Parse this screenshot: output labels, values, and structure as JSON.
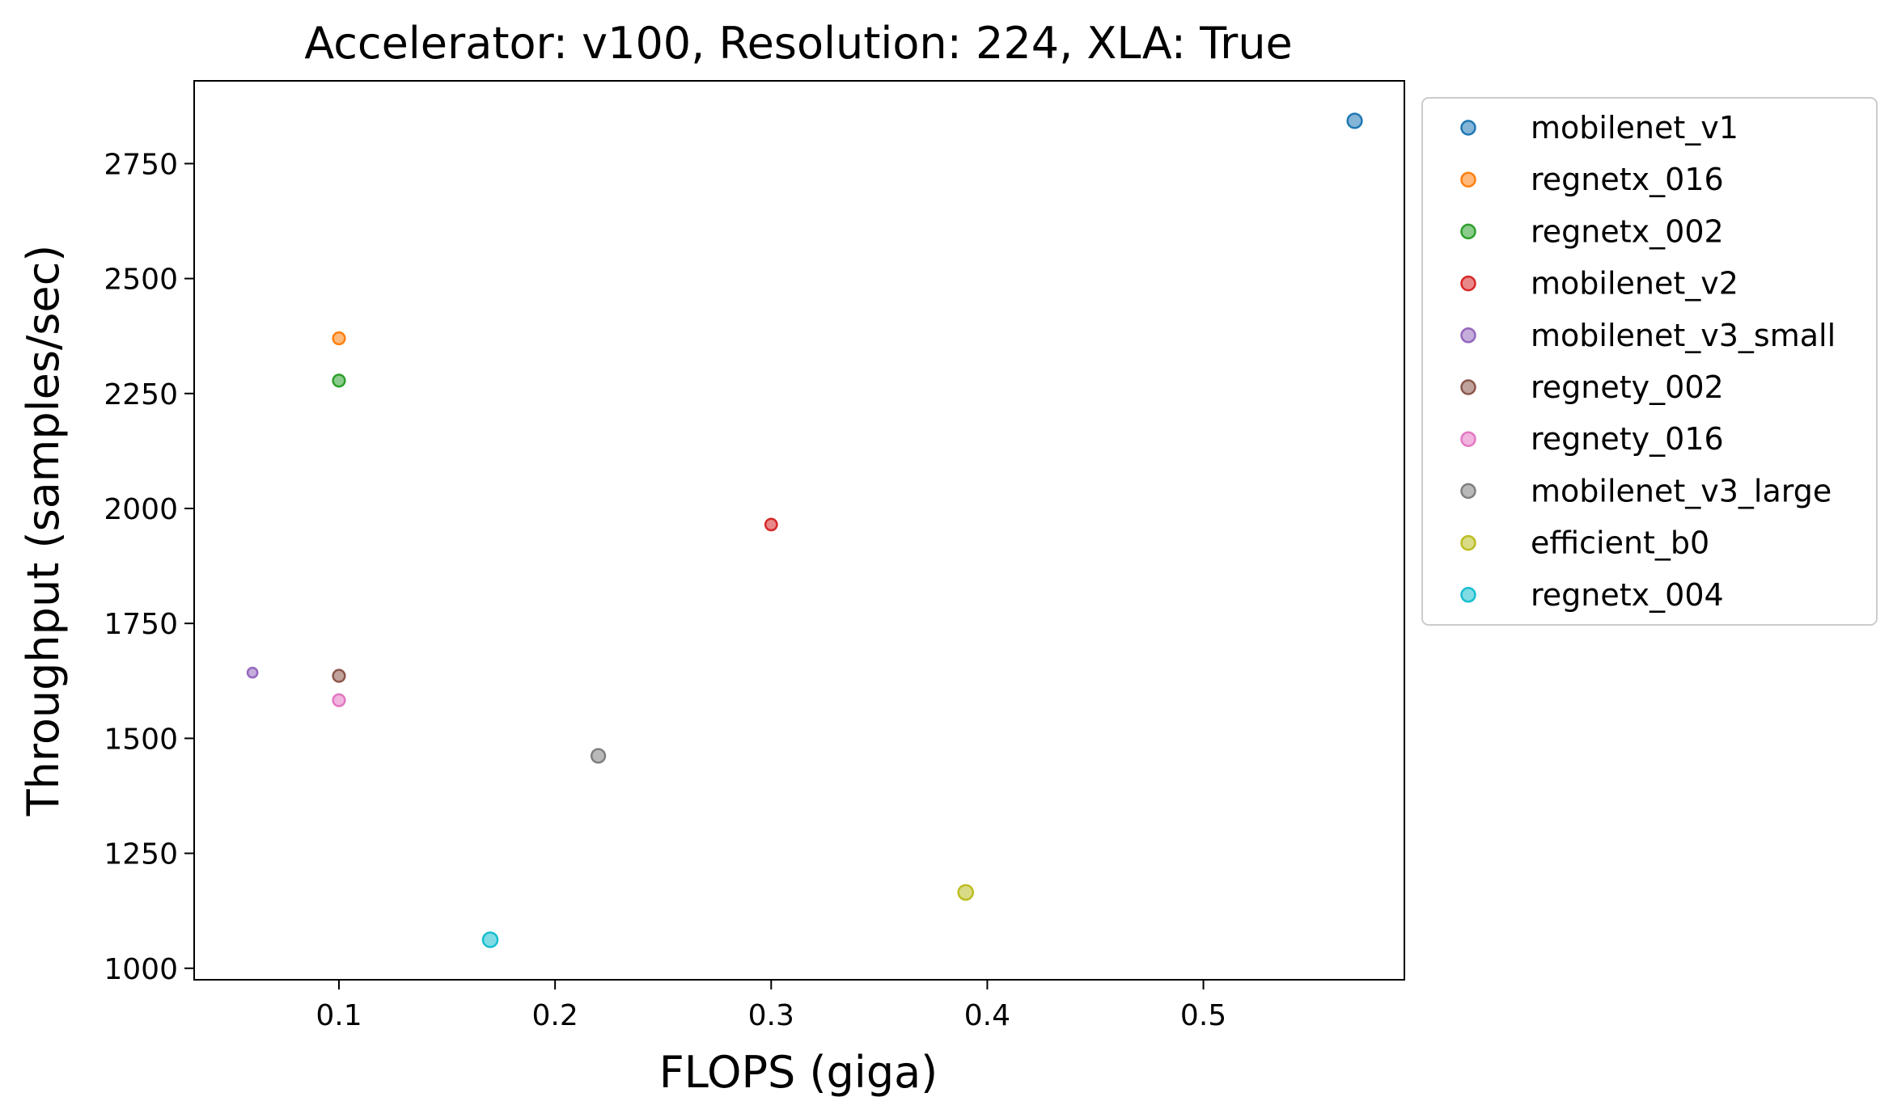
{
  "chart_data": {
    "type": "scatter",
    "title": "Accelerator: v100, Resolution: 224, XLA: True",
    "xlabel": "FLOPS (giga)",
    "ylabel": "Throughput (samples/sec)",
    "xlim": [
      0.033,
      0.593
    ],
    "ylim": [
      975,
      2930
    ],
    "xticks": [
      0.1,
      0.2,
      0.3,
      0.4,
      0.5
    ],
    "xtick_labels": [
      "0.1",
      "0.2",
      "0.3",
      "0.4",
      "0.5"
    ],
    "yticks": [
      1000,
      1250,
      1500,
      1750,
      2000,
      2250,
      2500,
      2750
    ],
    "ytick_labels": [
      "1000",
      "1250",
      "1500",
      "1750",
      "2000",
      "2250",
      "2500",
      "2750"
    ],
    "grid": false,
    "legend_position": "outside-right",
    "series": [
      {
        "name": "mobilenet_v1",
        "color": "#1f77b4",
        "x": 0.57,
        "y": 2843,
        "size": 4.2
      },
      {
        "name": "regnetx_016",
        "color": "#ff7f0e",
        "x": 0.1,
        "y": 2370,
        "size": 3.5
      },
      {
        "name": "regnetx_002",
        "color": "#2ca02c",
        "x": 0.1,
        "y": 2278,
        "size": 3.5
      },
      {
        "name": "mobilenet_v2",
        "color": "#d62728",
        "x": 0.3,
        "y": 1965,
        "size": 3.4
      },
      {
        "name": "mobilenet_v3_small",
        "color": "#9467bd",
        "x": 0.06,
        "y": 1643,
        "size": 2.9
      },
      {
        "name": "regnety_002",
        "color": "#8c564b",
        "x": 0.1,
        "y": 1636,
        "size": 3.5
      },
      {
        "name": "regnety_016",
        "color": "#e377c2",
        "x": 0.1,
        "y": 1583,
        "size": 3.5
      },
      {
        "name": "mobilenet_v3_large",
        "color": "#7f7f7f",
        "x": 0.22,
        "y": 1462,
        "size": 4.0
      },
      {
        "name": "efficient_b0",
        "color": "#bcbd22",
        "x": 0.39,
        "y": 1165,
        "size": 4.3
      },
      {
        "name": "regnetx_004",
        "color": "#17becf",
        "x": 0.17,
        "y": 1062,
        "size": 4.3
      }
    ]
  }
}
